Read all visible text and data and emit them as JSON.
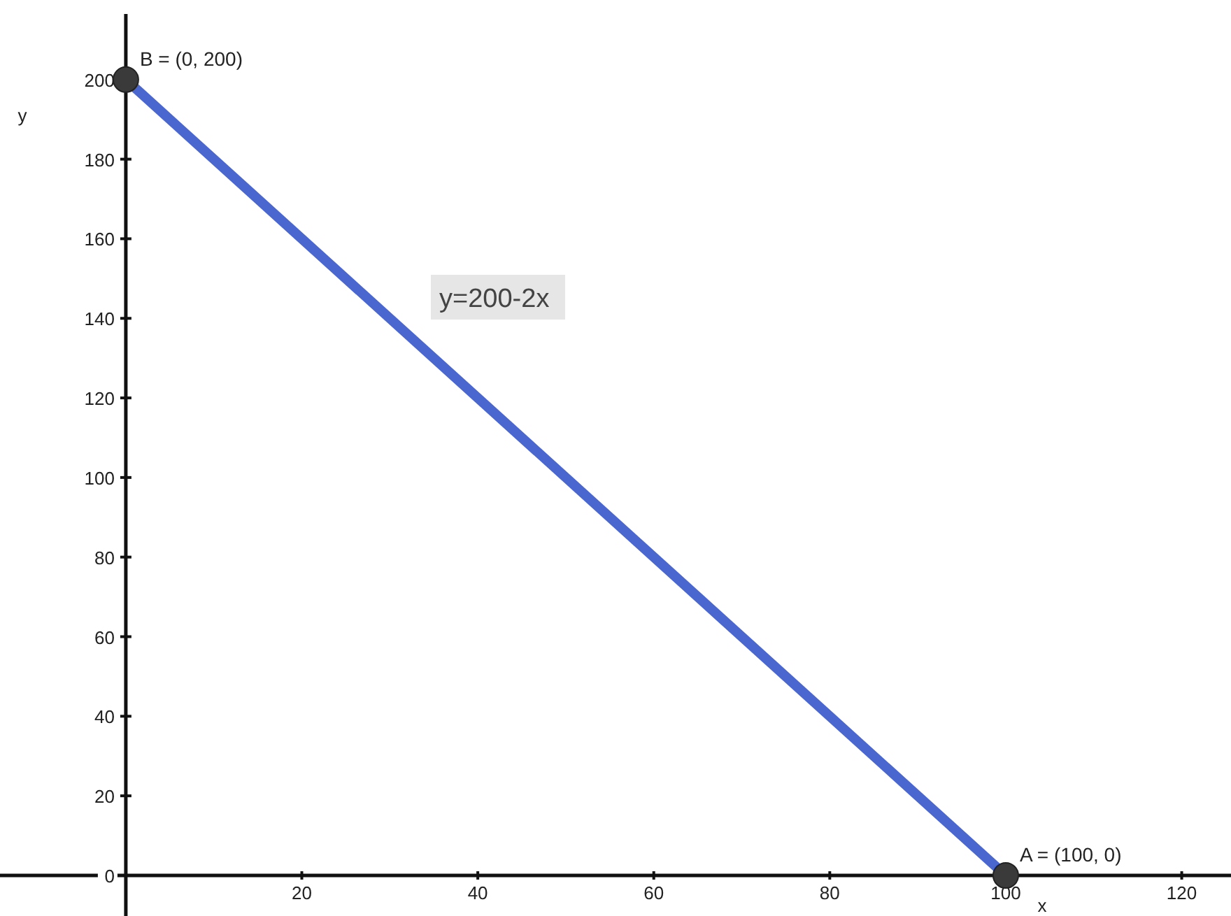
{
  "chart_data": {
    "type": "line",
    "xlabel": "x",
    "ylabel": "y",
    "xlim": [
      -14.3,
      125.6
    ],
    "ylim": [
      -10.2,
      220
    ],
    "xticks": [
      20,
      40,
      60,
      80,
      100,
      120
    ],
    "yticks": [
      0,
      20,
      40,
      60,
      80,
      100,
      120,
      140,
      160,
      180,
      200
    ],
    "grid": false,
    "marker": "circle",
    "series": [
      {
        "color": "#4a66cf",
        "x": [
          0,
          100
        ],
        "values": [
          200,
          0
        ]
      }
    ],
    "annotations": [
      {
        "text": "B = (0, 200)",
        "x": 0,
        "y": 200
      },
      {
        "text": "A = (100, 0)",
        "x": 100,
        "y": 0
      },
      "y=200-2x"
    ]
  }
}
